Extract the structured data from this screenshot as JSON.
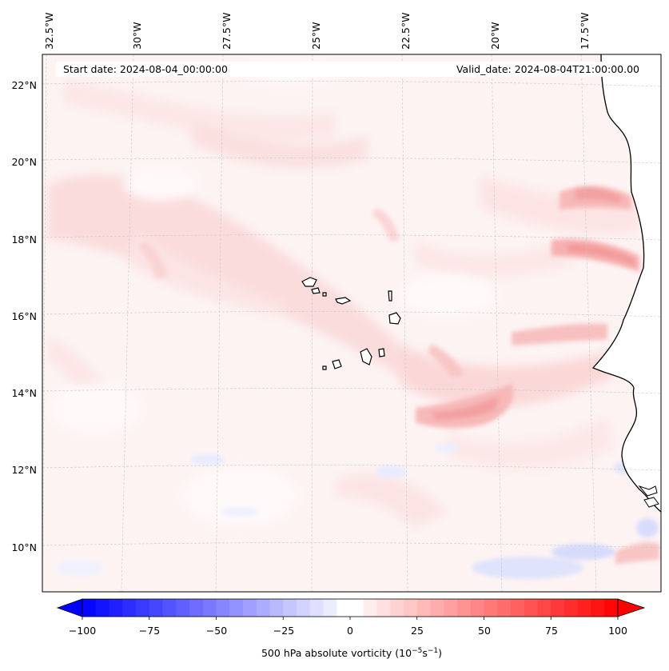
{
  "map": {
    "lon_labels": [
      "32.5°W",
      "30°W",
      "27.5°W",
      "25°W",
      "22.5°W",
      "20°W",
      "17.5°W"
    ],
    "lat_labels": [
      "22°N",
      "20°N",
      "18°N",
      "16°N",
      "14°N",
      "12°N",
      "10°N"
    ],
    "start_date": "Start date: 2024-08-04_00:00:00",
    "valid_date": "Valid_date: 2024-08-04T21:00:00.00"
  },
  "colorbar": {
    "ticks": [
      "−100",
      "−75",
      "−50",
      "−25",
      "0",
      "25",
      "50",
      "75",
      "100"
    ],
    "label_main": "500 hPa absolute vorticity (10",
    "label_exp1": "−5",
    "label_mid": "s",
    "label_exp2": "−1",
    "label_end": ")"
  },
  "colors": {
    "background_field": "#fdf3f3",
    "land": "#ffffff",
    "coastline": "#000000",
    "gridline": "#c8c8c8",
    "negative_max": "#0000ff",
    "positive_max": "#ff0000"
  }
}
